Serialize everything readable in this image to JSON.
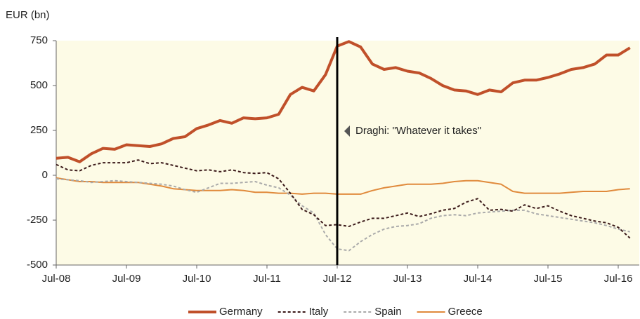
{
  "chart_data": {
    "type": "line",
    "y_label": "EUR (bn)",
    "categories": [
      "Jul-08",
      null,
      null,
      null,
      null,
      null,
      "Jul-09",
      null,
      null,
      null,
      null,
      null,
      "Jul-10",
      null,
      null,
      null,
      null,
      null,
      "Jul-11",
      null,
      null,
      null,
      null,
      null,
      "Jul-12",
      null,
      null,
      null,
      null,
      null,
      "Jul-13",
      null,
      null,
      null,
      null,
      null,
      "Jul-14",
      null,
      null,
      null,
      null,
      null,
      "Jul-15",
      null,
      null,
      null,
      null,
      null,
      "Jul-16",
      null
    ],
    "series": [
      {
        "name": "Germany",
        "color": "#c0502a",
        "dash": "solid",
        "width": 4,
        "values": [
          95,
          100,
          75,
          120,
          150,
          145,
          170,
          165,
          160,
          175,
          205,
          215,
          260,
          280,
          305,
          290,
          320,
          315,
          320,
          340,
          450,
          490,
          470,
          560,
          720,
          745,
          715,
          620,
          590,
          600,
          580,
          570,
          540,
          500,
          475,
          470,
          450,
          475,
          465,
          515,
          530,
          530,
          545,
          565,
          590,
          600,
          620,
          670,
          670,
          710
        ]
      },
      {
        "name": "Italy",
        "color": "#3b1a1a",
        "dash": "dashed",
        "width": 2,
        "values": [
          60,
          30,
          25,
          55,
          70,
          70,
          70,
          85,
          65,
          70,
          55,
          40,
          25,
          30,
          20,
          30,
          15,
          10,
          15,
          -20,
          -100,
          -190,
          -220,
          -280,
          -275,
          -285,
          -260,
          -240,
          -240,
          -225,
          -210,
          -230,
          -215,
          -195,
          -185,
          -150,
          -130,
          -195,
          -190,
          -200,
          -165,
          -185,
          -170,
          -200,
          -225,
          -240,
          -255,
          -265,
          -290,
          -350
        ]
      },
      {
        "name": "Spain",
        "color": "#aaaaaa",
        "dash": "dashed",
        "width": 2,
        "values": [
          -20,
          -25,
          -30,
          -40,
          -35,
          -30,
          -35,
          -40,
          -45,
          -50,
          -60,
          -80,
          -95,
          -70,
          -45,
          -45,
          -40,
          -35,
          -55,
          -70,
          -110,
          -170,
          -210,
          -330,
          -410,
          -420,
          -370,
          -330,
          -300,
          -285,
          -280,
          -270,
          -240,
          -225,
          -220,
          -225,
          -210,
          -205,
          -200,
          -195,
          -195,
          -215,
          -225,
          -235,
          -245,
          -255,
          -265,
          -280,
          -300,
          -315
        ]
      },
      {
        "name": "Greece",
        "color": "#e08a3c",
        "dash": "solid",
        "width": 2,
        "values": [
          -15,
          -25,
          -35,
          -35,
          -40,
          -40,
          -40,
          -40,
          -50,
          -60,
          -75,
          -80,
          -85,
          -85,
          -85,
          -80,
          -85,
          -95,
          -95,
          -100,
          -100,
          -105,
          -100,
          -100,
          -105,
          -105,
          -105,
          -85,
          -70,
          -60,
          -50,
          -50,
          -50,
          -45,
          -35,
          -30,
          -30,
          -40,
          -50,
          -90,
          -100,
          -100,
          -100,
          -100,
          -95,
          -90,
          -90,
          -90,
          -80,
          -75
        ]
      }
    ],
    "ylim": [
      -500,
      750
    ],
    "yticks": [
      -500,
      -250,
      0,
      250,
      500,
      750
    ],
    "event": {
      "x": "Jul-12",
      "label": "Draghi: \"Whatever it takes\""
    },
    "plot_background": "#fdfbe6",
    "legend": "bottom"
  }
}
